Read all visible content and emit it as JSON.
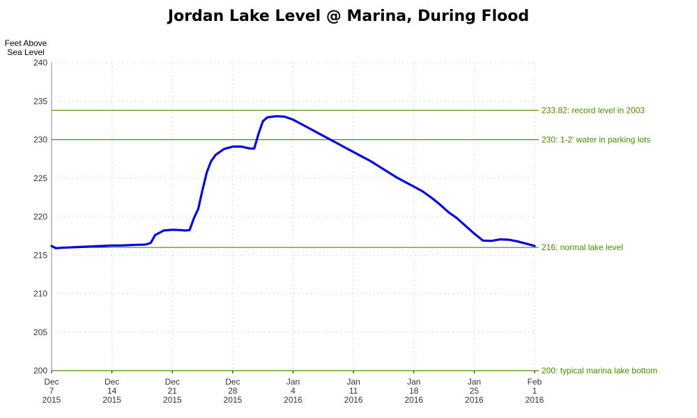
{
  "chart_data": {
    "type": "line",
    "title": "Jordan Lake Level @ Marina, During Flood",
    "ylabel": [
      "Feet Above",
      "Sea Level"
    ],
    "xlabel": "",
    "xlim": [
      "2015-12-07",
      "2016-02-01"
    ],
    "ylim": [
      200,
      240
    ],
    "yticks": [
      200,
      205,
      210,
      215,
      220,
      225,
      230,
      235,
      240
    ],
    "xticks": [
      {
        "date": "2015-12-07",
        "label": [
          "Dec",
          "7",
          "2015"
        ]
      },
      {
        "date": "2015-12-14",
        "label": [
          "Dec",
          "14",
          "2015"
        ]
      },
      {
        "date": "2015-12-21",
        "label": [
          "Dec",
          "21",
          "2015"
        ]
      },
      {
        "date": "2015-12-28",
        "label": [
          "Dec",
          "28",
          "2015"
        ]
      },
      {
        "date": "2016-01-04",
        "label": [
          "Jan",
          "4",
          "2016"
        ]
      },
      {
        "date": "2016-01-11",
        "label": [
          "Jan",
          "11",
          "2016"
        ]
      },
      {
        "date": "2016-01-18",
        "label": [
          "Jan",
          "18",
          "2016"
        ]
      },
      {
        "date": "2016-01-25",
        "label": [
          "Jan",
          "25",
          "2016"
        ]
      },
      {
        "date": "2016-02-01",
        "label": [
          "Feb",
          "1",
          "2016"
        ]
      }
    ],
    "grid": true,
    "line_color": "#0000e0",
    "reference_color": "#4a8a00",
    "reference_lines": [
      {
        "value": 233.82,
        "label": "233.82: record level in 2003"
      },
      {
        "value": 230,
        "label": "230: 1-2' water in parking lots"
      },
      {
        "value": 216,
        "label": "216: normal lake level"
      },
      {
        "value": 200,
        "label": "200: typical marina lake bottom"
      }
    ],
    "series": [
      {
        "x": [
          "2015-12-07",
          "2015-12-07 12:00",
          "2015-12-08",
          "2015-12-09",
          "2015-12-10",
          "2015-12-11",
          "2015-12-12",
          "2015-12-13",
          "2015-12-14",
          "2015-12-15",
          "2015-12-16",
          "2015-12-17",
          "2015-12-17 12:00",
          "2015-12-18",
          "2015-12-18 12:00",
          "2015-12-19",
          "2015-12-20",
          "2015-12-21",
          "2015-12-22",
          "2015-12-22 12:00",
          "2015-12-23",
          "2015-12-23 12:00",
          "2015-12-24",
          "2015-12-24 12:00",
          "2015-12-25",
          "2015-12-25 12:00",
          "2015-12-26",
          "2015-12-27",
          "2015-12-28",
          "2015-12-29",
          "2015-12-30",
          "2015-12-30 12:00",
          "2015-12-31",
          "2015-12-31 12:00",
          "2016-01-01",
          "2016-01-02",
          "2016-01-03",
          "2016-01-04",
          "2016-01-05",
          "2016-01-06",
          "2016-01-07",
          "2016-01-08",
          "2016-01-09",
          "2016-01-10",
          "2016-01-11",
          "2016-01-12",
          "2016-01-13",
          "2016-01-14",
          "2016-01-15",
          "2016-01-16",
          "2016-01-17",
          "2016-01-18",
          "2016-01-19",
          "2016-01-20",
          "2016-01-21",
          "2016-01-22",
          "2016-01-23",
          "2016-01-24",
          "2016-01-25",
          "2016-01-26",
          "2016-01-27",
          "2016-01-28",
          "2016-01-29",
          "2016-01-30",
          "2016-01-31",
          "2016-02-01"
        ],
        "y": [
          216.2,
          215.9,
          215.95,
          216.0,
          216.05,
          216.1,
          216.15,
          216.2,
          216.25,
          216.25,
          216.3,
          216.35,
          216.35,
          216.4,
          216.6,
          217.6,
          218.2,
          218.3,
          218.25,
          218.2,
          218.25,
          219.8,
          221.0,
          223.5,
          225.8,
          227.2,
          228.0,
          228.8,
          229.1,
          229.1,
          228.85,
          228.85,
          230.8,
          232.4,
          232.9,
          233.05,
          233.0,
          232.6,
          232.0,
          231.4,
          230.8,
          230.2,
          229.6,
          229.0,
          228.4,
          227.8,
          227.2,
          226.5,
          225.8,
          225.1,
          224.5,
          223.9,
          223.3,
          222.5,
          221.6,
          220.6,
          219.8,
          218.8,
          217.8,
          216.9,
          216.85,
          217.05,
          217.0,
          216.8,
          216.5,
          216.2
        ]
      }
    ]
  }
}
